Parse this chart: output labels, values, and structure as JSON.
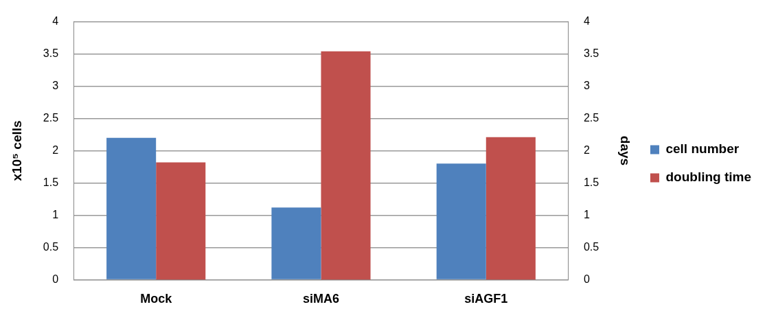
{
  "chart_data": {
    "type": "bar",
    "categories": [
      "Mock",
      "siMA6",
      "siAGF1"
    ],
    "ylabel": "x10⁵ cells",
    "y2label": "days",
    "series": [
      {
        "name": "cell number",
        "color": "#4f81bd",
        "values": [
          2.2,
          1.12,
          1.8
        ]
      },
      {
        "name": "doubling time",
        "color": "#c0504d",
        "values": [
          1.82,
          3.54,
          2.21
        ],
        "axis": "y2"
      }
    ],
    "ylim": [
      0,
      4
    ],
    "yticks": [
      0,
      0.5,
      1,
      1.5,
      2,
      2.5,
      3,
      3.5,
      4
    ],
    "y2lim": [
      0,
      4
    ],
    "y2ticks": [
      0,
      0.5,
      1,
      1.5,
      2,
      2.5,
      3,
      3.5,
      4
    ],
    "grid": "y",
    "legend": "right"
  }
}
